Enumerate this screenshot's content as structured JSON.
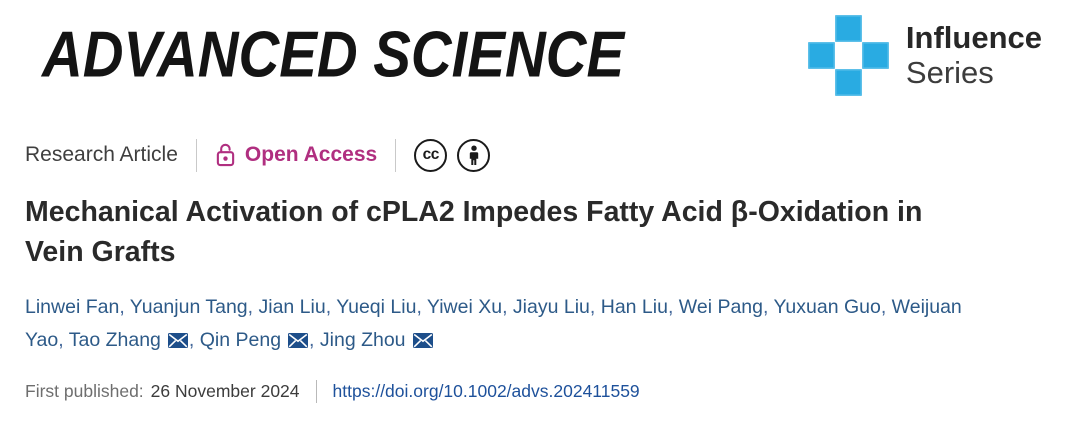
{
  "masthead": {
    "journal_logo": "ADVANCED SCIENCE",
    "series_logo": {
      "line1": "Influence",
      "line2": "Series"
    },
    "colors": {
      "series_blue": "#29abe2"
    }
  },
  "meta": {
    "article_type": "Research Article",
    "access_label": "Open Access",
    "access_color": "#b02f80",
    "license_cc_text": "cc",
    "icons": {
      "access_lock": "open-lock-icon",
      "license": [
        "cc-icon",
        "attribution-person-icon"
      ],
      "email": "envelope-icon"
    }
  },
  "title": "Mechanical Activation of cPLA2 Impedes Fatty Acid β-Oxidation in Vein Grafts",
  "authors": {
    "items": [
      {
        "name": "Linwei Fan"
      },
      {
        "name": "Yuanjun Tang"
      },
      {
        "name": "Jian Liu"
      },
      {
        "name": "Yueqi Liu"
      },
      {
        "name": "Yiwei Xu"
      },
      {
        "name": "Jiayu Liu"
      },
      {
        "name": "Han Liu"
      },
      {
        "name": "Wei Pang"
      },
      {
        "name": "Yuxuan Guo"
      },
      {
        "name": "Weijuan Yao"
      },
      {
        "name": "Tao Zhang",
        "email": true
      },
      {
        "name": "Qin Peng",
        "email": true
      },
      {
        "name": "Jing Zhou",
        "email": true
      }
    ]
  },
  "published": {
    "label": "First published:",
    "date": "26 November 2024",
    "doi_url": "https://doi.org/10.1002/advs.202411559"
  }
}
